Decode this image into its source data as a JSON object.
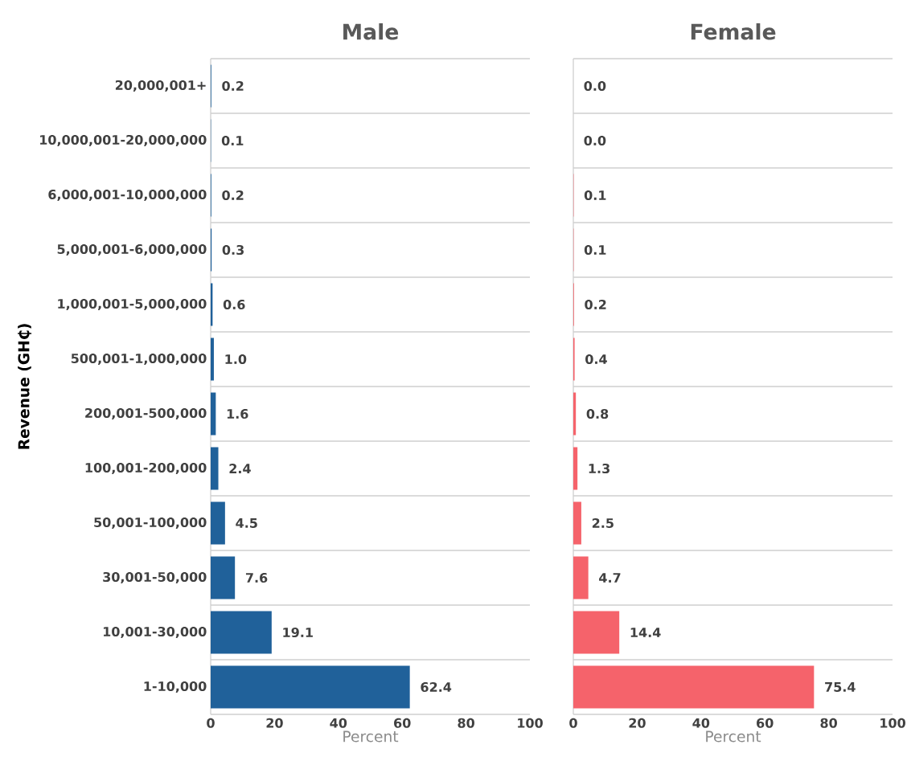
{
  "chart_data": [
    {
      "type": "bar",
      "orientation": "horizontal",
      "title": "Male",
      "xlabel": "Percent",
      "ylabel": "Revenue (GH₵)",
      "categories": [
        "20,000,001+",
        "10,000,001-20,000,000",
        "6,000,001-10,000,000",
        "5,000,001-6,000,000",
        "1,000,001-5,000,000",
        "500,001-1,000,000",
        "200,001-500,000",
        "100,001-200,000",
        "50,001-100,000",
        "30,001-50,000",
        "10,001-30,000",
        "1-10,000"
      ],
      "values": [
        0.2,
        0.1,
        0.2,
        0.3,
        0.6,
        1.0,
        1.6,
        2.4,
        4.5,
        7.6,
        19.1,
        62.4
      ],
      "value_labels": [
        "0.2",
        "0.1",
        "0.2",
        "0.3",
        "0.6",
        "1.0",
        "1.6",
        "2.4",
        "4.5",
        "7.6",
        "19.1",
        "62.4"
      ],
      "color": "#20619a",
      "xlim": [
        0,
        100
      ],
      "xticks": [
        0,
        20,
        40,
        60,
        80,
        100
      ],
      "grid": "y"
    },
    {
      "type": "bar",
      "orientation": "horizontal",
      "title": "Female",
      "xlabel": "Percent",
      "categories": [
        null,
        null,
        null,
        null,
        null,
        null,
        null,
        null,
        null,
        null,
        null,
        null
      ],
      "values": [
        0.0,
        0.0,
        0.1,
        0.1,
        0.2,
        0.4,
        0.8,
        1.3,
        2.5,
        4.7,
        14.4,
        75.4
      ],
      "value_labels": [
        "0.0",
        "0.0",
        "0.1",
        "0.1",
        "0.2",
        "0.4",
        "0.8",
        "1.3",
        "2.5",
        "4.7",
        "14.4",
        "75.4"
      ],
      "color": "#f5636b",
      "xlim": [
        0,
        100
      ],
      "xticks": [
        0,
        20,
        40,
        60,
        80,
        100
      ],
      "grid": "y",
      "tick_labels": "x"
    }
  ]
}
